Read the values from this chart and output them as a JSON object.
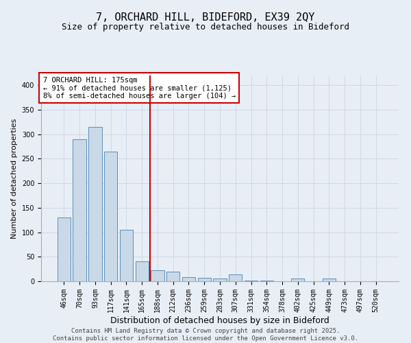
{
  "title1": "7, ORCHARD HILL, BIDEFORD, EX39 2QY",
  "title2": "Size of property relative to detached houses in Bideford",
  "xlabel": "Distribution of detached houses by size in Bideford",
  "ylabel": "Number of detached properties",
  "categories": [
    "46sqm",
    "70sqm",
    "93sqm",
    "117sqm",
    "141sqm",
    "165sqm",
    "188sqm",
    "212sqm",
    "236sqm",
    "259sqm",
    "283sqm",
    "307sqm",
    "331sqm",
    "354sqm",
    "378sqm",
    "402sqm",
    "425sqm",
    "449sqm",
    "473sqm",
    "497sqm",
    "520sqm"
  ],
  "values": [
    130,
    290,
    315,
    265,
    105,
    40,
    22,
    20,
    8,
    7,
    6,
    14,
    2,
    1,
    0,
    5,
    0,
    5,
    0,
    0,
    0
  ],
  "bar_color": "#c9d9e8",
  "bar_edge_color": "#5b8db8",
  "vline_x_index": 5,
  "vline_color": "#cc0000",
  "annotation_text": "7 ORCHARD HILL: 175sqm\n← 91% of detached houses are smaller (1,125)\n8% of semi-detached houses are larger (104) →",
  "annotation_box_color": "#ffffff",
  "annotation_box_edge_color": "#cc0000",
  "ylim": [
    0,
    420
  ],
  "yticks": [
    0,
    50,
    100,
    150,
    200,
    250,
    300,
    350,
    400
  ],
  "grid_color": "#d0d8e8",
  "bg_color": "#e8eef5",
  "plot_bg_color": "#e8eef5",
  "footer_text": "Contains HM Land Registry data © Crown copyright and database right 2025.\nContains public sector information licensed under the Open Government Licence v3.0.",
  "title1_fontsize": 11,
  "title2_fontsize": 9,
  "xlabel_fontsize": 9,
  "ylabel_fontsize": 8,
  "tick_fontsize": 7,
  "annotation_fontsize": 7.5,
  "footer_fontsize": 6.5
}
